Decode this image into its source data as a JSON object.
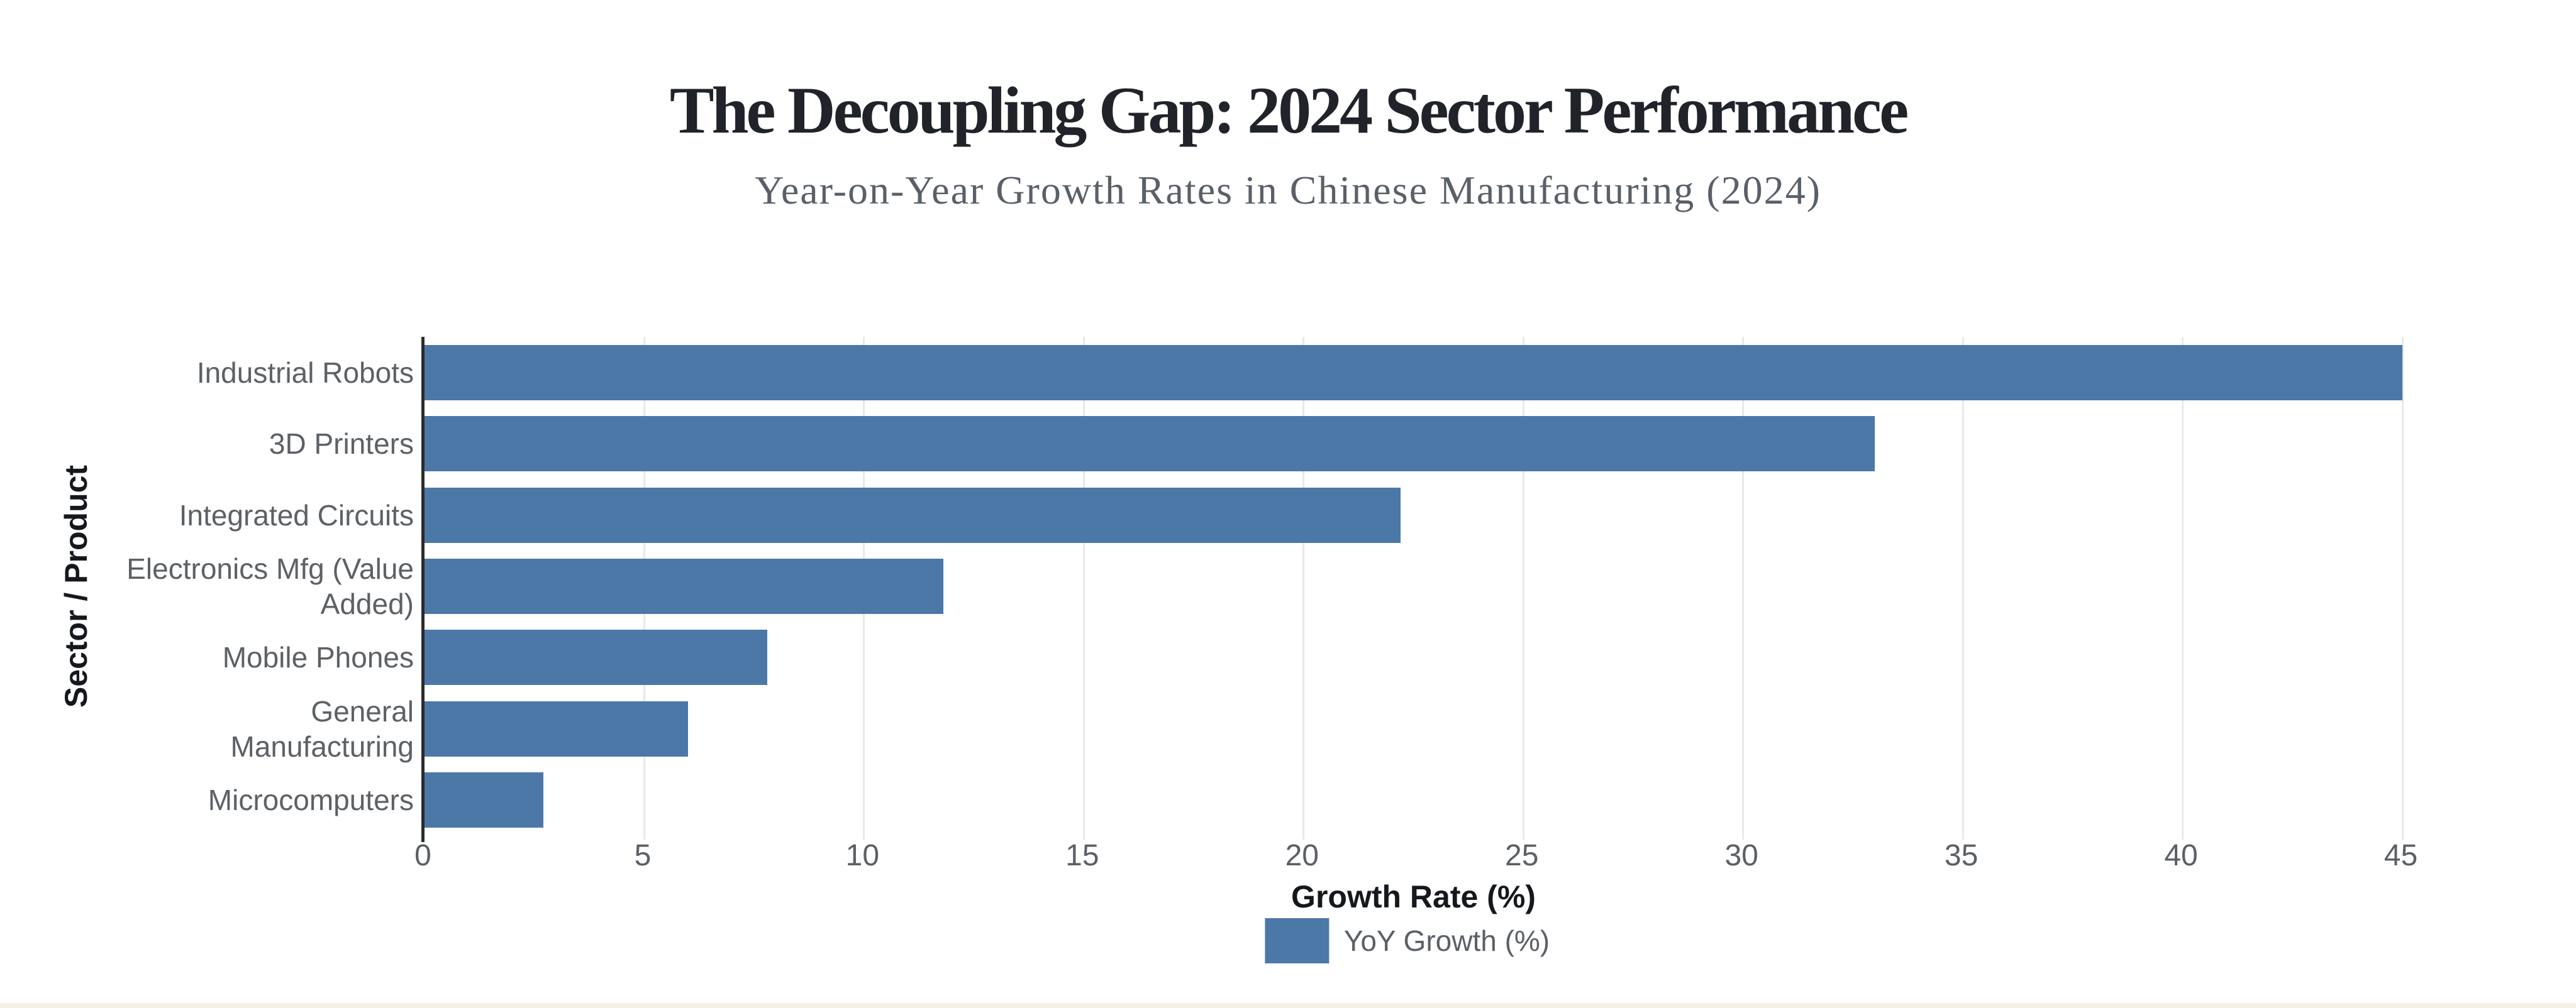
{
  "header": {
    "title": "The Decoupling Gap: 2024 Sector Performance",
    "subtitle": "Year-on-Year Growth Rates in Chinese Manufacturing (2024)"
  },
  "chart_data": {
    "type": "bar",
    "orientation": "horizontal",
    "title": "The Decoupling Gap: 2024 Sector Performance",
    "subtitle": "Year-on-Year Growth Rates in Chinese Manufacturing (2024)",
    "categories": [
      "Industrial Robots",
      "3D Printers",
      "Integrated Circuits",
      "Electronics Mfg (Value Added)",
      "Mobile Phones",
      "General Manufacturing",
      "Microcomputers"
    ],
    "categories_display": [
      "Industrial Robots",
      "3D Printers",
      "Integrated Circuits",
      "Electronics Mfg (Value\nAdded)",
      "Mobile Phones",
      "General\nManufacturing",
      "Microcomputers"
    ],
    "series": [
      {
        "name": "YoY Growth (%)",
        "values": [
          45.0,
          33.0,
          22.2,
          11.8,
          7.8,
          6.0,
          2.7
        ]
      }
    ],
    "xlabel": "Growth Rate (%)",
    "ylabel": "Sector / Product",
    "xlim": [
      0,
      45
    ],
    "xticks": [
      0,
      5,
      10,
      15,
      20,
      25,
      30,
      35,
      40,
      45
    ],
    "grid": "vertical-gridlines-on",
    "legend_position": "bottom-center",
    "bar_color": "#4C78A8"
  },
  "legend": {
    "label": "YoY Growth (%)",
    "swatch_color": "#4C78A8"
  },
  "colors": {
    "bar": "#4C78A8",
    "title": "#20242a",
    "subtitle": "#5a6068",
    "tick_label": "#5b6066",
    "axis_line": "#2a2c2e",
    "gridline": "#e7e9eb",
    "bottom_strip": "#f5f1e9"
  }
}
